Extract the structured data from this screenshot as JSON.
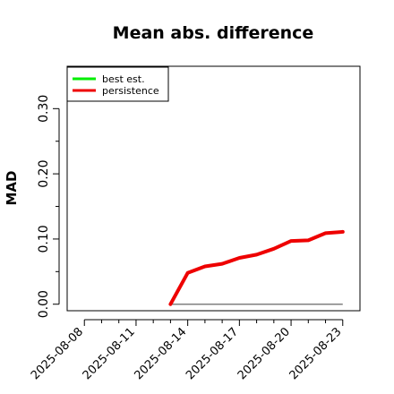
{
  "chart_data": {
    "type": "line",
    "title": "Mean abs. difference",
    "xlabel": "",
    "ylabel": "MAD",
    "x": [
      "2025-08-13",
      "2025-08-14",
      "2025-08-15",
      "2025-08-16",
      "2025-08-17",
      "2025-08-18",
      "2025-08-19",
      "2025-08-20",
      "2025-08-21",
      "2025-08-22",
      "2025-08-23"
    ],
    "x_ticks": [
      "2025-08-08",
      "2025-08-11",
      "2025-08-14",
      "2025-08-17",
      "2025-08-20",
      "2025-08-23"
    ],
    "xlim": [
      "2025-08-07",
      "2025-08-24"
    ],
    "y_ticks": [
      "0.00",
      "0.10",
      "0.20",
      "0.30"
    ],
    "ylim": [
      -0.01,
      0.365
    ],
    "grid": false,
    "legend_position": "top-left",
    "series": [
      {
        "name": "best est.",
        "color": "#00ee00",
        "values": [
          0,
          0,
          0,
          0,
          0,
          0,
          0,
          0,
          0,
          0,
          0
        ]
      },
      {
        "name": "persistence",
        "color": "#ee0000",
        "values": [
          0.0,
          0.048,
          0.058,
          0.062,
          0.071,
          0.076,
          0.085,
          0.097,
          0.098,
          0.109,
          0.111
        ]
      }
    ],
    "baseline_color": "#808080"
  }
}
